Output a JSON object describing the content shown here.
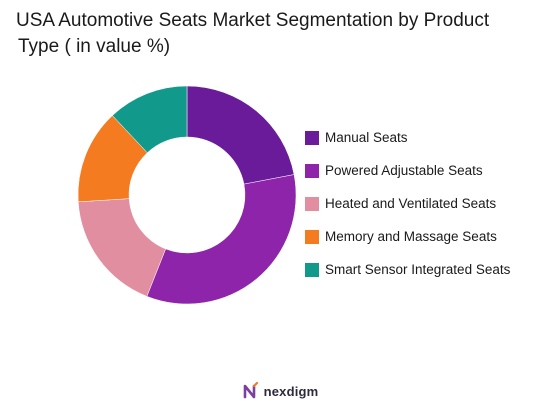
{
  "chart_data": {
    "type": "pie",
    "title_lines": [
      "USA Automotive Seats Market Segmentation by Product",
      "Type ( in value %)"
    ],
    "categories": [
      "Manual Seats",
      "Powered Adjustable Seats",
      "Heated and Ventilated Seats",
      "Memory and Massage Seats",
      "Smart Sensor Integrated Seats"
    ],
    "values": [
      22,
      34,
      18,
      14,
      12
    ],
    "colors": [
      "#6a1b9a",
      "#8e24aa",
      "#e08ea0",
      "#f47b20",
      "#119a8c"
    ],
    "donut": true,
    "legend_position": "right"
  },
  "footer": {
    "brand": "nexdigm",
    "logo_icon": "nexdigm-logo-icon",
    "logo_color": "#7b3fa0"
  }
}
